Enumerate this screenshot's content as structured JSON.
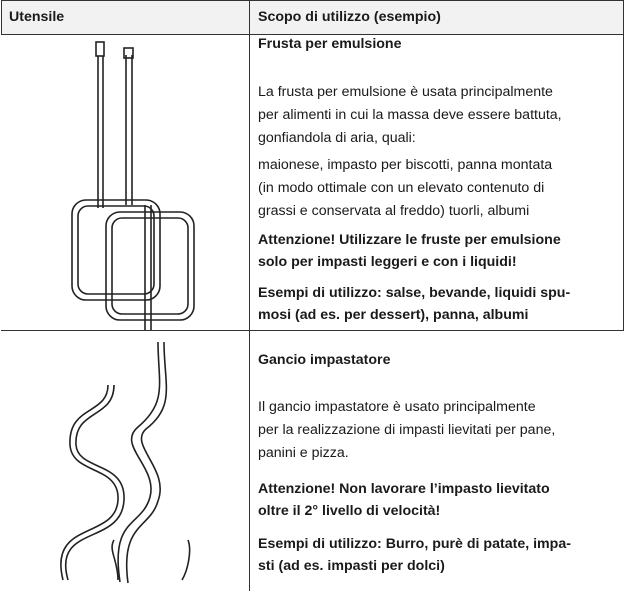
{
  "table": {
    "header": [
      "Utensile",
      "Scopo di utilizzo (esempio)"
    ],
    "rows": [
      {
        "title": "Frusta per emulsione",
        "paragraphs": [
          [
            "La frusta per emulsione è usata principalmente",
            "per alimenti in cui la massa deve essere battuta,",
            "gonfiandola di aria, quali:"
          ],
          [
            "maionese, impasto per biscotti, panna montata",
            "(in modo ottimale con un elevato contenuto di",
            "grassi e conservata al freddo) tuorli, albumi"
          ],
          [
            "Attenzione! Utilizzare le fruste per emulsione",
            "solo per impasti leggeri e con i liquidi!"
          ],
          [
            "Esempi di utilizzo: salse, bevande, liquidi spu-",
            "mosi (ad es. per dessert), panna, albumi"
          ]
        ]
      },
      {
        "title": "Gancio impastatore",
        "paragraphs": [
          [
            "Il gancio impastatore è usato principalmente",
            "per la realizzazione di impasti lievitati per pane,",
            "panini e pizza."
          ],
          [
            "Attenzione! Non lavorare l’impasto lievitato",
            "oltre il 2° livello di velocità!"
          ],
          [
            "Esempi di utilizzo: Burro, purè di patate, impa-",
            "sti (ad es. impasti per dolci)"
          ]
        ]
      }
    ]
  }
}
